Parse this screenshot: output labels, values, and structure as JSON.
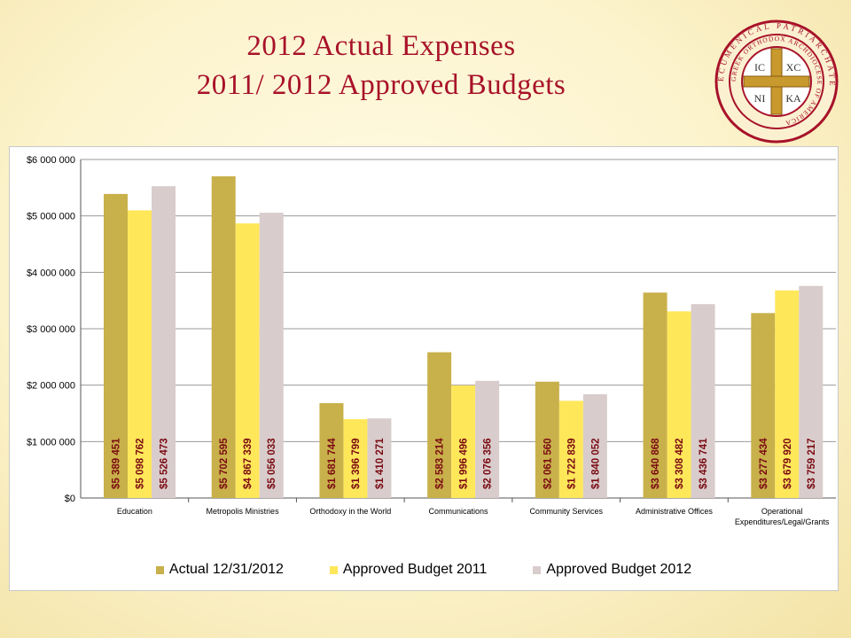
{
  "title_line1": "2012 Actual Expenses",
  "title_line2": "2011/ 2012 Approved Budgets",
  "seal": {
    "ring_text": "ECUMENICAL PATRIARCHATE",
    "inner_text": "GREEK ORTHODOX ARCHDIOCESE OF AMERICA",
    "monogram": [
      "IC",
      "XC",
      "NI",
      "KA"
    ]
  },
  "colors": {
    "actual": "#c8b04a",
    "budget2011": "#ffe75a",
    "budget2012": "#d9cccc",
    "label": "#7a0a12",
    "title": "#a8122a"
  },
  "chart_data": {
    "type": "bar",
    "categories": [
      "Education",
      "Metropolis Ministries",
      "Orthodoxy in the World",
      "Communications",
      "Community Services",
      "Administrative Offices",
      "Operational Expenditures/Legal/Grants"
    ],
    "category_display": [
      [
        "Education"
      ],
      [
        "Metropolis Ministries"
      ],
      [
        "Orthodoxy in the World"
      ],
      [
        "Communications"
      ],
      [
        "Community Services"
      ],
      [
        "Administrative Offices"
      ],
      [
        "Operational",
        "Expenditures/Legal/Grants"
      ]
    ],
    "series": [
      {
        "name": "Actual 12/31/2012",
        "values": [
          5389451,
          5702595,
          1681744,
          2583214,
          2061560,
          3640868,
          3277434
        ],
        "labels": [
          "$5 389 451",
          "$5 702 595",
          "$1 681 744",
          "$2 583 214",
          "$2 061 560",
          "$3 640 868",
          "$3 277 434"
        ]
      },
      {
        "name": "Approved Budget 2011",
        "values": [
          5098762,
          4867339,
          1396799,
          1996496,
          1722839,
          3308482,
          3679920
        ],
        "labels": [
          "$5 098 762",
          "$4 867 339",
          "$1 396 799",
          "$1 996 496",
          "$1 722 839",
          "$3 308 482",
          "$3 679 920"
        ]
      },
      {
        "name": "Approved Budget 2012",
        "values": [
          5526473,
          5056033,
          1410271,
          2076356,
          1840052,
          3436741,
          3759217
        ],
        "labels": [
          "$5 526 473",
          "$5 056 033",
          "$1 410 271",
          "$2 076 356",
          "$1 840 052",
          "$3 436 741",
          "$3 759 217"
        ]
      }
    ],
    "ylim": [
      0,
      6000000
    ],
    "yticks": [
      0,
      1000000,
      2000000,
      3000000,
      4000000,
      5000000,
      6000000
    ],
    "ytick_labels": [
      "$0",
      "$1 000 000",
      "$2 000 000",
      "$3 000 000",
      "$4 000 000",
      "$5 000 000",
      "$6 000 000"
    ],
    "grid": true,
    "legend_position": "bottom"
  }
}
